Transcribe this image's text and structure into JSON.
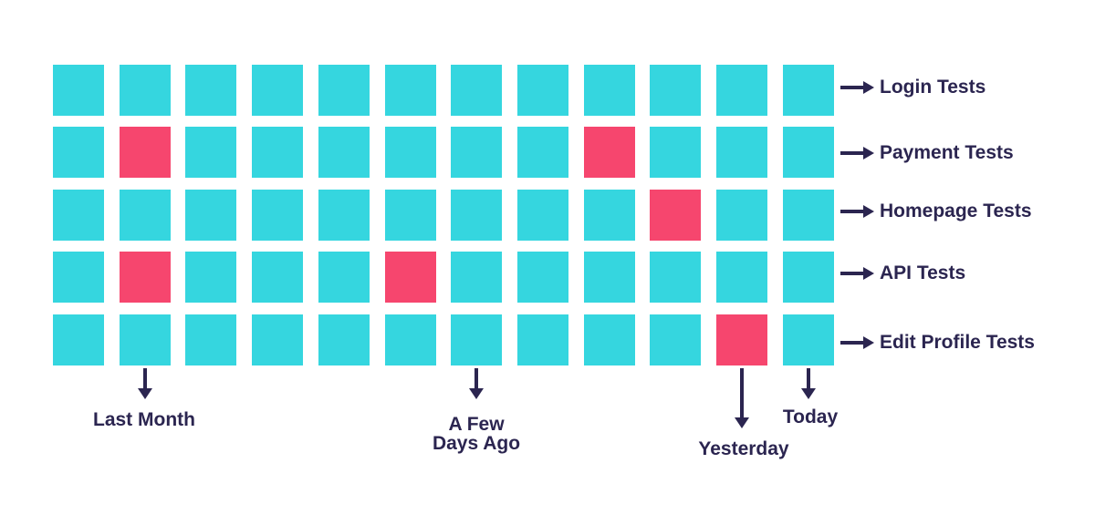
{
  "grid": {
    "pass_color": "#35d6df",
    "fail_color": "#f6466e",
    "columns": 12,
    "rows": [
      {
        "label": "Login Tests",
        "results": [
          "pass",
          "pass",
          "pass",
          "pass",
          "pass",
          "pass",
          "pass",
          "pass",
          "pass",
          "pass",
          "pass",
          "pass"
        ]
      },
      {
        "label": "Payment Tests",
        "results": [
          "pass",
          "fail",
          "pass",
          "pass",
          "pass",
          "pass",
          "pass",
          "pass",
          "fail",
          "pass",
          "pass",
          "pass"
        ]
      },
      {
        "label": "Homepage Tests",
        "results": [
          "pass",
          "pass",
          "pass",
          "pass",
          "pass",
          "pass",
          "pass",
          "pass",
          "pass",
          "fail",
          "pass",
          "pass"
        ]
      },
      {
        "label": "API Tests",
        "results": [
          "pass",
          "fail",
          "pass",
          "pass",
          "pass",
          "fail",
          "pass",
          "pass",
          "pass",
          "pass",
          "pass",
          "pass"
        ]
      },
      {
        "label": "Edit Profile Tests",
        "results": [
          "pass",
          "pass",
          "pass",
          "pass",
          "pass",
          "pass",
          "pass",
          "pass",
          "pass",
          "pass",
          "fail",
          "pass"
        ]
      }
    ]
  },
  "time_markers": [
    {
      "label_lines": [
        "Last Month"
      ],
      "column": 1
    },
    {
      "label_lines": [
        "A Few",
        "Days Ago"
      ],
      "column": 6
    },
    {
      "label_lines": [
        "Yesterday"
      ],
      "column": 10
    },
    {
      "label_lines": [
        "Today"
      ],
      "column": 11
    }
  ],
  "arrow_color": "#2b2550"
}
